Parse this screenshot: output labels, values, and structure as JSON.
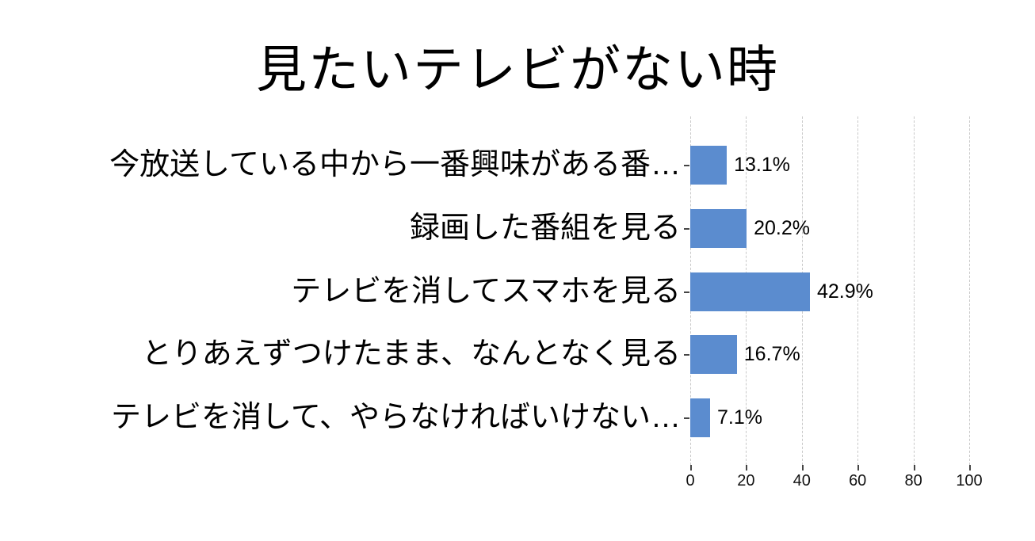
{
  "chart_data": {
    "type": "bar",
    "orientation": "horizontal",
    "title": "見たいテレビがない時",
    "categories": [
      "今放送している中から一番興味がある番…",
      "録画した番組を見る",
      "テレビを消してスマホを見る",
      "とりあえずつけたまま、なんとなく見る",
      "テレビを消して、やらなければいけない…"
    ],
    "values": [
      13.1,
      20.2,
      42.9,
      16.7,
      7.1
    ],
    "value_labels": [
      "13.1%",
      "20.2%",
      "42.9%",
      "16.7%",
      "7.1%"
    ],
    "xlabel": "",
    "ylabel": "",
    "xlim": [
      0,
      100
    ],
    "xticks": [
      0,
      20,
      40,
      60,
      80,
      100
    ],
    "grid": "vertical-dashed",
    "legend": "none",
    "colors": {
      "bar": "#5B8CCF",
      "gridline": "#c9c9c9",
      "tick": "#454545",
      "text": "#000000",
      "background": "#ffffff"
    }
  }
}
